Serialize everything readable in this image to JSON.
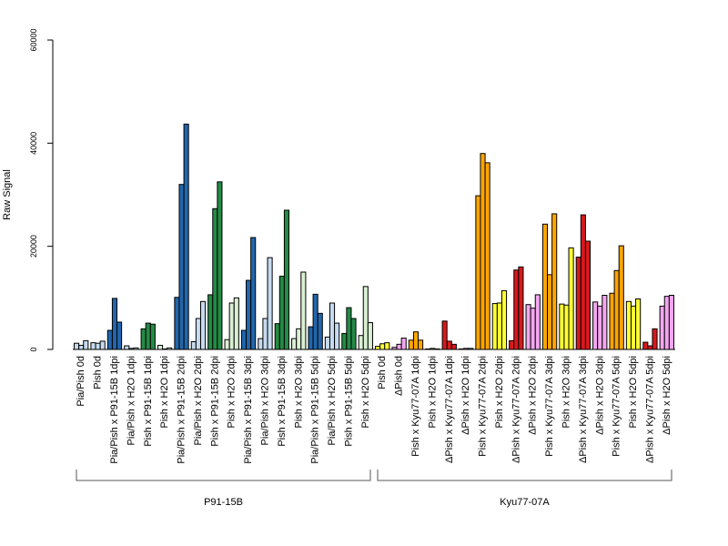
{
  "chart_data": {
    "type": "bar",
    "ylabel": "Raw Signal",
    "ylim": [
      0,
      60000
    ],
    "yticks": [
      "0",
      "20000",
      "40000",
      "60000"
    ],
    "grid": false,
    "legend": "none",
    "categories": [
      "Pia/Pish 0d",
      "Pish 0d",
      "Pia/Pish x P91-15B 1dpi",
      "Pia/Pish x H2O 1dpi",
      "Pish x P91-15B 1dpi",
      "Pish x H2O 1dpi",
      "Pia/Pish x P91-15B 2dpi",
      "Pia/Pish x H2O 2dpi",
      "Pish x P91-15B 2dpi",
      "Pish x H2O 2dpi",
      "Pia/Pish x P91-15B 3dpi",
      "Pia/Pish x H2O 3dpi",
      "Pish x P91-15B 3dpi",
      "Pish x H2O 3dpi",
      "Pia/Pish x P91-15B 5dpi",
      "Pia/Pish x H2O 5dpi",
      "Pish x P91-15B 5dpi",
      "Pish x H2O 5dpi",
      "Pish 0d",
      "ΔPish 0d",
      "Pish x Kyu77-07A 1dpi",
      "Pish x H2O 1dpi",
      "ΔPish x Kyu77-07A 1dpi",
      "ΔPish x H2O 1dpi",
      "Pish x Kyu77-07A 2dpi",
      "Pish x H2O 2dpi",
      "ΔPish x Kyu77-07A 2dpi",
      "ΔPish x H2O 2dpi",
      "Pish x Kyu77-07A 3dpi",
      "Pish x H2O 3dpi",
      "ΔPish x Kyu77-07A 3dpi",
      "ΔPish x H2O 3dpi",
      "Pish x Kyu77-07A 5dpi",
      "Pish x H2O 5dpi",
      "ΔPish x Kyu77-07A 5dpi",
      "ΔPish x H2O 5dpi"
    ],
    "colors": [
      "#c6dbef",
      "#c6dbef",
      "#2166ac",
      "#c6dbef",
      "#238b45",
      "#d9f0d3",
      "#2166ac",
      "#c6dbef",
      "#238b45",
      "#d9f0d3",
      "#2166ac",
      "#c6dbef",
      "#238b45",
      "#d9f0d3",
      "#2166ac",
      "#c6dbef",
      "#238b45",
      "#d9f0d3",
      "#ffff33",
      "#f4a6f0",
      "#ffa500",
      "#ffff33",
      "#d7191c",
      "#f4a6f0",
      "#ffa500",
      "#ffff33",
      "#d7191c",
      "#f4a6f0",
      "#ffa500",
      "#ffff33",
      "#d7191c",
      "#f4a6f0",
      "#ffa500",
      "#ffff33",
      "#d7191c",
      "#f4a6f0"
    ],
    "values": [
      [
        1200,
        800,
        1700
      ],
      [
        1300,
        1200,
        1600
      ],
      [
        3700,
        9900,
        5300
      ],
      [
        700,
        200,
        300
      ],
      [
        4000,
        5100,
        4900
      ],
      [
        800,
        100,
        300
      ],
      [
        10100,
        32000,
        43700
      ],
      [
        1500,
        6000,
        9300
      ],
      [
        10600,
        27300,
        32500
      ],
      [
        1900,
        9000,
        10000
      ],
      [
        3700,
        13400,
        21700
      ],
      [
        2100,
        6000,
        17800
      ],
      [
        5000,
        14200,
        27000
      ],
      [
        2100,
        4000,
        15000
      ],
      [
        4400,
        10700,
        7000
      ],
      [
        2400,
        9000,
        5100
      ],
      [
        3100,
        8100,
        6000
      ],
      [
        2700,
        12200,
        5200
      ],
      [
        600,
        1100,
        1300
      ],
      [
        400,
        1000,
        2200
      ],
      [
        1800,
        3400,
        1800
      ],
      [
        100,
        200,
        100
      ],
      [
        5500,
        1600,
        1000
      ],
      [
        100,
        200,
        200
      ],
      [
        29800,
        38000,
        36200
      ],
      [
        8900,
        9000,
        11400
      ],
      [
        1700,
        15400,
        16000
      ],
      [
        8700,
        8000,
        10600
      ],
      [
        24300,
        14500,
        26300
      ],
      [
        8800,
        8600,
        19700
      ],
      [
        17900,
        26100,
        21000
      ],
      [
        9200,
        8400,
        10500
      ],
      [
        10900,
        15300,
        20100
      ],
      [
        9300,
        8400,
        9800
      ],
      [
        1400,
        700,
        4000
      ],
      [
        8400,
        10300,
        10500
      ]
    ],
    "groups": [
      {
        "label": "P91-15B",
        "from": 0,
        "to": 17
      },
      {
        "label": "Kyu77-07A",
        "from": 18,
        "to": 35
      }
    ]
  }
}
